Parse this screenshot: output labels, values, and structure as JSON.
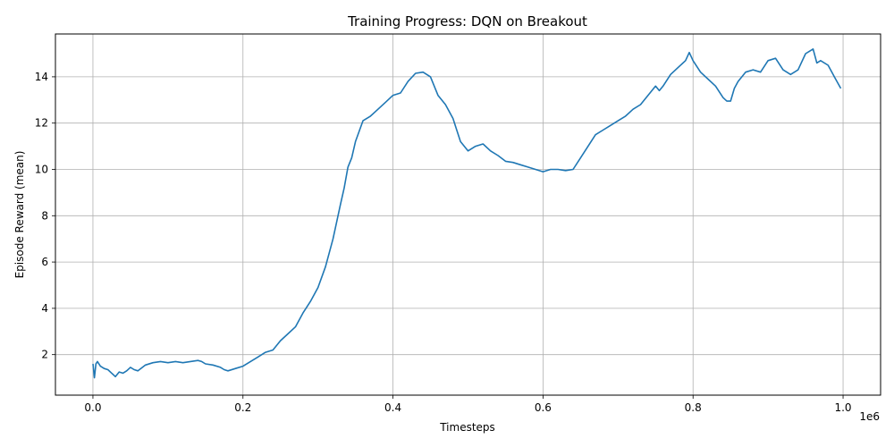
{
  "chart_data": {
    "type": "line",
    "title": "Training Progress: DQN on Breakout",
    "xlabel": "Timesteps",
    "ylabel": "Episode Reward (mean)",
    "x_offset_label": "1e6",
    "xlim": [
      -0.05,
      1.05
    ],
    "ylim": [
      0.25,
      15.85
    ],
    "x_ticks": [
      0.0,
      0.2,
      0.4,
      0.6,
      0.8,
      1.0
    ],
    "x_tick_labels": [
      "0.0",
      "0.2",
      "0.4",
      "0.6",
      "0.8",
      "1.0"
    ],
    "y_ticks": [
      2,
      4,
      6,
      8,
      10,
      12,
      14
    ],
    "y_tick_labels": [
      "2",
      "4",
      "6",
      "8",
      "10",
      "12",
      "14"
    ],
    "grid": true,
    "series": [
      {
        "color": "#1f77b4",
        "x": [
          0.0,
          0.002,
          0.004,
          0.006,
          0.01,
          0.015,
          0.02,
          0.025,
          0.03,
          0.035,
          0.04,
          0.045,
          0.05,
          0.055,
          0.06,
          0.07,
          0.08,
          0.09,
          0.1,
          0.11,
          0.12,
          0.13,
          0.14,
          0.145,
          0.15,
          0.16,
          0.17,
          0.175,
          0.18,
          0.19,
          0.2,
          0.21,
          0.22,
          0.23,
          0.24,
          0.25,
          0.26,
          0.27,
          0.28,
          0.29,
          0.3,
          0.31,
          0.32,
          0.33,
          0.335,
          0.34,
          0.345,
          0.35,
          0.36,
          0.37,
          0.38,
          0.39,
          0.4,
          0.41,
          0.42,
          0.43,
          0.44,
          0.45,
          0.46,
          0.47,
          0.48,
          0.485,
          0.49,
          0.5,
          0.51,
          0.52,
          0.53,
          0.54,
          0.55,
          0.56,
          0.57,
          0.58,
          0.59,
          0.6,
          0.61,
          0.62,
          0.63,
          0.64,
          0.65,
          0.66,
          0.67,
          0.68,
          0.69,
          0.7,
          0.71,
          0.72,
          0.73,
          0.74,
          0.75,
          0.755,
          0.76,
          0.77,
          0.78,
          0.79,
          0.795,
          0.8,
          0.81,
          0.82,
          0.83,
          0.84,
          0.845,
          0.85,
          0.855,
          0.86,
          0.87,
          0.88,
          0.89,
          0.9,
          0.91,
          0.92,
          0.93,
          0.94,
          0.95,
          0.955,
          0.96,
          0.965,
          0.97,
          0.98,
          0.99,
          0.997
        ],
        "y": [
          1.6,
          1.0,
          1.6,
          1.7,
          1.5,
          1.4,
          1.35,
          1.2,
          1.05,
          1.25,
          1.2,
          1.3,
          1.45,
          1.35,
          1.3,
          1.55,
          1.65,
          1.7,
          1.65,
          1.7,
          1.65,
          1.7,
          1.75,
          1.7,
          1.6,
          1.55,
          1.45,
          1.35,
          1.3,
          1.4,
          1.5,
          1.7,
          1.9,
          2.1,
          2.2,
          2.6,
          2.9,
          3.2,
          3.8,
          4.3,
          4.9,
          5.8,
          7.0,
          8.5,
          9.2,
          10.1,
          10.5,
          11.2,
          12.1,
          12.3,
          12.6,
          12.9,
          13.2,
          13.3,
          13.8,
          14.15,
          14.2,
          14.0,
          13.2,
          12.8,
          12.2,
          11.7,
          11.2,
          10.8,
          11.0,
          11.1,
          10.8,
          10.6,
          10.35,
          10.3,
          10.2,
          10.1,
          10.0,
          9.9,
          10.0,
          10.0,
          9.95,
          10.0,
          10.5,
          11.0,
          11.5,
          11.7,
          11.9,
          12.1,
          12.3,
          12.6,
          12.8,
          13.2,
          13.6,
          13.4,
          13.6,
          14.1,
          14.4,
          14.7,
          15.05,
          14.7,
          14.2,
          13.9,
          13.6,
          13.1,
          12.95,
          12.95,
          13.5,
          13.8,
          14.2,
          14.3,
          14.2,
          14.7,
          14.8,
          14.3,
          14.1,
          14.3,
          15.0,
          15.1,
          15.2,
          14.6,
          14.7,
          14.5,
          13.9,
          13.5
        ]
      }
    ]
  }
}
